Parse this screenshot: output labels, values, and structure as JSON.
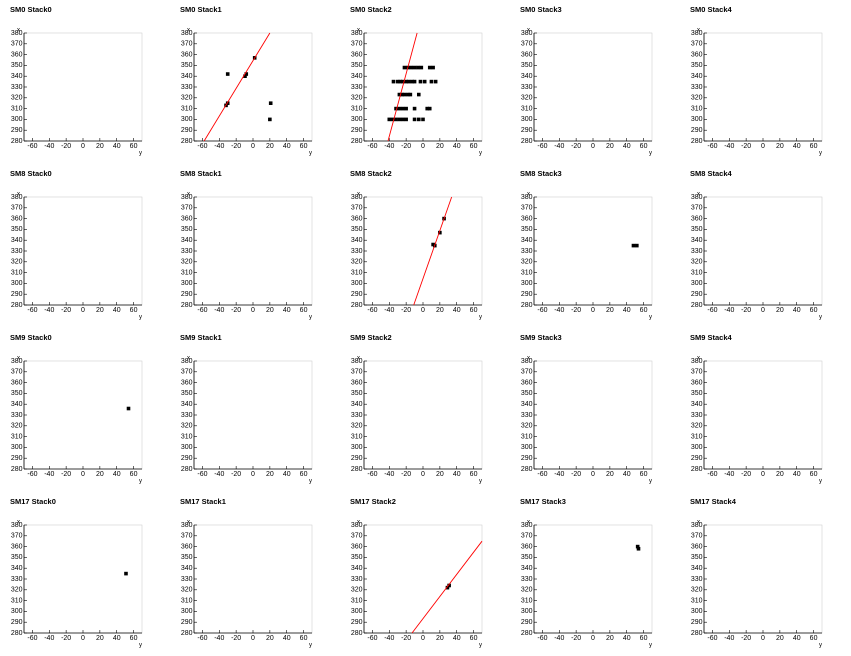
{
  "chart_data": [
    {
      "type": "scatter",
      "title": "SM0 Stack0",
      "xlabel": "y",
      "ylabel": "x",
      "xlim": [
        -70,
        70
      ],
      "ylim": [
        280,
        380
      ],
      "xticks": [
        -60,
        -40,
        -20,
        0,
        20,
        40,
        60
      ],
      "yticks": [
        280,
        290,
        300,
        310,
        320,
        330,
        340,
        350,
        360,
        370,
        380
      ]
    },
    {
      "type": "scatter",
      "title": "SM0 Stack1",
      "xlabel": "y",
      "ylabel": "x",
      "xlim": [
        -70,
        70
      ],
      "ylim": [
        280,
        380
      ],
      "xticks": [
        -60,
        -40,
        -20,
        0,
        20,
        40,
        60
      ],
      "yticks": [
        280,
        290,
        300,
        310,
        320,
        330,
        340,
        350,
        360,
        370,
        380
      ],
      "series": [
        {
          "color": "#000000",
          "x": [
            -32,
            -30,
            -30,
            -8,
            -9.5,
            2,
            21,
            20
          ],
          "y": [
            313,
            315,
            342,
            342,
            340,
            357,
            315,
            300
          ]
        }
      ],
      "lines": [
        {
          "color": "#ff0000",
          "x": [
            -58,
            20
          ],
          "y": [
            280,
            380
          ]
        }
      ]
    },
    {
      "type": "scatter",
      "title": "SM0 Stack2",
      "xlabel": "y",
      "ylabel": "x",
      "xlim": [
        -70,
        70
      ],
      "ylim": [
        280,
        380
      ],
      "xticks": [
        -60,
        -40,
        -20,
        0,
        20,
        40,
        60
      ],
      "yticks": [
        280,
        290,
        300,
        310,
        320,
        330,
        340,
        350,
        360,
        370,
        380
      ],
      "series": [
        {
          "color": "#000000",
          "x": [
            -40,
            -36,
            -32,
            -28,
            -24,
            -20,
            -10,
            -5,
            0,
            -32,
            -28,
            -24,
            -20,
            -10,
            5,
            8,
            -28,
            -25,
            -22,
            -18,
            -15,
            -5,
            -35,
            -30,
            -27,
            -24,
            -20,
            -17,
            -13,
            -10,
            -3,
            2,
            10,
            15,
            -22,
            -18,
            -14,
            -10,
            -6,
            -2,
            8,
            12
          ],
          "y": [
            300,
            300,
            300,
            300,
            300,
            300,
            300,
            300,
            300,
            310,
            310,
            310,
            310,
            310,
            310,
            310,
            323,
            323,
            323,
            323,
            323,
            323,
            335,
            335,
            335,
            335,
            335,
            335,
            335,
            335,
            335,
            335,
            335,
            335,
            348,
            348,
            348,
            348,
            348,
            348,
            348,
            348
          ]
        }
      ],
      "lines": [
        {
          "color": "#ff0000",
          "x": [
            -41.5,
            -7
          ],
          "y": [
            280,
            380
          ]
        }
      ]
    },
    {
      "type": "scatter",
      "title": "SM0 Stack3",
      "xlabel": "y",
      "ylabel": "x",
      "xlim": [
        -70,
        70
      ],
      "ylim": [
        280,
        380
      ],
      "xticks": [
        -60,
        -40,
        -20,
        0,
        20,
        40,
        60
      ],
      "yticks": [
        280,
        290,
        300,
        310,
        320,
        330,
        340,
        350,
        360,
        370,
        380
      ]
    },
    {
      "type": "scatter",
      "title": "SM0 Stack4",
      "xlabel": "y",
      "ylabel": "x",
      "xlim": [
        -70,
        70
      ],
      "ylim": [
        280,
        380
      ],
      "xticks": [
        -60,
        -40,
        -20,
        0,
        20,
        40,
        60
      ],
      "yticks": [
        280,
        290,
        300,
        310,
        320,
        330,
        340,
        350,
        360,
        370,
        380
      ]
    },
    {
      "type": "scatter",
      "title": "SM8 Stack0",
      "xlabel": "y",
      "ylabel": "x",
      "xlim": [
        -70,
        70
      ],
      "ylim": [
        280,
        380
      ],
      "xticks": [
        -60,
        -40,
        -20,
        0,
        20,
        40,
        60
      ],
      "yticks": [
        280,
        290,
        300,
        310,
        320,
        330,
        340,
        350,
        360,
        370,
        380
      ]
    },
    {
      "type": "scatter",
      "title": "SM8 Stack1",
      "xlabel": "y",
      "ylabel": "x",
      "xlim": [
        -70,
        70
      ],
      "ylim": [
        280,
        380
      ],
      "xticks": [
        -60,
        -40,
        -20,
        0,
        20,
        40,
        60
      ],
      "yticks": [
        280,
        290,
        300,
        310,
        320,
        330,
        340,
        350,
        360,
        370,
        380
      ]
    },
    {
      "type": "scatter",
      "title": "SM8 Stack2",
      "xlabel": "y",
      "ylabel": "x",
      "xlim": [
        -70,
        70
      ],
      "ylim": [
        280,
        380
      ],
      "xticks": [
        -60,
        -40,
        -20,
        0,
        20,
        40,
        60
      ],
      "yticks": [
        280,
        290,
        300,
        310,
        320,
        330,
        340,
        350,
        360,
        370,
        380
      ],
      "series": [
        {
          "color": "#000000",
          "x": [
            12,
            14,
            20,
            25
          ],
          "y": [
            336,
            335,
            347,
            360
          ]
        }
      ],
      "lines": [
        {
          "color": "#ff0000",
          "x": [
            -11,
            34
          ],
          "y": [
            280,
            380
          ]
        }
      ]
    },
    {
      "type": "scatter",
      "title": "SM8 Stack3",
      "xlabel": "y",
      "ylabel": "x",
      "xlim": [
        -70,
        70
      ],
      "ylim": [
        280,
        380
      ],
      "xticks": [
        -60,
        -40,
        -20,
        0,
        20,
        40,
        60
      ],
      "yticks": [
        280,
        290,
        300,
        310,
        320,
        330,
        340,
        350,
        360,
        370,
        380
      ],
      "series": [
        {
          "color": "#000000",
          "x": [
            48,
            52
          ],
          "y": [
            335,
            335
          ]
        }
      ]
    },
    {
      "type": "scatter",
      "title": "SM8 Stack4",
      "xlabel": "y",
      "ylabel": "x",
      "xlim": [
        -70,
        70
      ],
      "ylim": [
        280,
        380
      ],
      "xticks": [
        -60,
        -40,
        -20,
        0,
        20,
        40,
        60
      ],
      "yticks": [
        280,
        290,
        300,
        310,
        320,
        330,
        340,
        350,
        360,
        370,
        380
      ]
    },
    {
      "type": "scatter",
      "title": "SM9 Stack0",
      "xlabel": "y",
      "ylabel": "x",
      "xlim": [
        -70,
        70
      ],
      "ylim": [
        280,
        380
      ],
      "xticks": [
        -60,
        -40,
        -20,
        0,
        20,
        40,
        60
      ],
      "yticks": [
        280,
        290,
        300,
        310,
        320,
        330,
        340,
        350,
        360,
        370,
        380
      ],
      "series": [
        {
          "color": "#000000",
          "x": [
            54
          ],
          "y": [
            336
          ]
        }
      ]
    },
    {
      "type": "scatter",
      "title": "SM9 Stack1",
      "xlabel": "y",
      "ylabel": "x",
      "xlim": [
        -70,
        70
      ],
      "ylim": [
        280,
        380
      ],
      "xticks": [
        -60,
        -40,
        -20,
        0,
        20,
        40,
        60
      ],
      "yticks": [
        280,
        290,
        300,
        310,
        320,
        330,
        340,
        350,
        360,
        370,
        380
      ]
    },
    {
      "type": "scatter",
      "title": "SM9 Stack2",
      "xlabel": "y",
      "ylabel": "x",
      "xlim": [
        -70,
        70
      ],
      "ylim": [
        280,
        380
      ],
      "xticks": [
        -60,
        -40,
        -20,
        0,
        20,
        40,
        60
      ],
      "yticks": [
        280,
        290,
        300,
        310,
        320,
        330,
        340,
        350,
        360,
        370,
        380
      ]
    },
    {
      "type": "scatter",
      "title": "SM9 Stack3",
      "xlabel": "y",
      "ylabel": "x",
      "xlim": [
        -70,
        70
      ],
      "ylim": [
        280,
        380
      ],
      "xticks": [
        -60,
        -40,
        -20,
        0,
        20,
        40,
        60
      ],
      "yticks": [
        280,
        290,
        300,
        310,
        320,
        330,
        340,
        350,
        360,
        370,
        380
      ]
    },
    {
      "type": "scatter",
      "title": "SM9 Stack4",
      "xlabel": "y",
      "ylabel": "x",
      "xlim": [
        -70,
        70
      ],
      "ylim": [
        280,
        380
      ],
      "xticks": [
        -60,
        -40,
        -20,
        0,
        20,
        40,
        60
      ],
      "yticks": [
        280,
        290,
        300,
        310,
        320,
        330,
        340,
        350,
        360,
        370,
        380
      ]
    },
    {
      "type": "scatter",
      "title": "SM17 Stack0",
      "xlabel": "y",
      "ylabel": "x",
      "xlim": [
        -70,
        70
      ],
      "ylim": [
        280,
        380
      ],
      "xticks": [
        -60,
        -40,
        -20,
        0,
        20,
        40,
        60
      ],
      "yticks": [
        280,
        290,
        300,
        310,
        320,
        330,
        340,
        350,
        360,
        370,
        380
      ],
      "series": [
        {
          "color": "#000000",
          "x": [
            51
          ],
          "y": [
            335
          ]
        }
      ]
    },
    {
      "type": "scatter",
      "title": "SM17 Stack1",
      "xlabel": "y",
      "ylabel": "x",
      "xlim": [
        -70,
        70
      ],
      "ylim": [
        280,
        380
      ],
      "xticks": [
        -60,
        -40,
        -20,
        0,
        20,
        40,
        60
      ],
      "yticks": [
        280,
        290,
        300,
        310,
        320,
        330,
        340,
        350,
        360,
        370,
        380
      ]
    },
    {
      "type": "scatter",
      "title": "SM17 Stack2",
      "xlabel": "y",
      "ylabel": "x",
      "xlim": [
        -70,
        70
      ],
      "ylim": [
        280,
        380
      ],
      "xticks": [
        -60,
        -40,
        -20,
        0,
        20,
        40,
        60
      ],
      "yticks": [
        280,
        290,
        300,
        310,
        320,
        330,
        340,
        350,
        360,
        370,
        380
      ],
      "series": [
        {
          "color": "#000000",
          "x": [
            29,
            31
          ],
          "y": [
            322,
            324
          ]
        }
      ],
      "lines": [
        {
          "color": "#ff0000",
          "x": [
            -13,
            70
          ],
          "y": [
            280,
            365
          ]
        }
      ]
    },
    {
      "type": "scatter",
      "title": "SM17 Stack3",
      "xlabel": "y",
      "ylabel": "x",
      "xlim": [
        -70,
        70
      ],
      "ylim": [
        280,
        380
      ],
      "xticks": [
        -60,
        -40,
        -20,
        0,
        20,
        40,
        60
      ],
      "yticks": [
        280,
        290,
        300,
        310,
        320,
        330,
        340,
        350,
        360,
        370,
        380
      ],
      "series": [
        {
          "color": "#000000",
          "x": [
            53,
            54
          ],
          "y": [
            360,
            358
          ]
        }
      ]
    },
    {
      "type": "scatter",
      "title": "SM17 Stack4",
      "xlabel": "y",
      "ylabel": "x",
      "xlim": [
        -70,
        70
      ],
      "ylim": [
        280,
        380
      ],
      "xticks": [
        -60,
        -40,
        -20,
        0,
        20,
        40,
        60
      ],
      "yticks": [
        280,
        290,
        300,
        310,
        320,
        330,
        340,
        350,
        360,
        370,
        380
      ]
    }
  ]
}
